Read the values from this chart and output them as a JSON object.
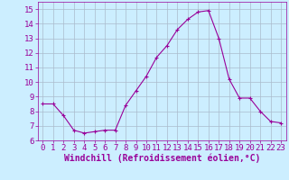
{
  "x": [
    0,
    1,
    2,
    3,
    4,
    5,
    6,
    7,
    8,
    9,
    10,
    11,
    12,
    13,
    14,
    15,
    16,
    17,
    18,
    19,
    20,
    21,
    22,
    23
  ],
  "y": [
    8.5,
    8.5,
    7.7,
    6.7,
    6.5,
    6.6,
    6.7,
    6.7,
    8.4,
    9.4,
    10.4,
    11.7,
    12.5,
    13.6,
    14.3,
    14.8,
    14.9,
    13.0,
    10.2,
    8.9,
    8.9,
    8.0,
    7.3,
    7.2
  ],
  "line_color": "#990099",
  "marker": "+",
  "marker_size": 3,
  "bg_color": "#cceeff",
  "grid_color": "#aabbcc",
  "xlabel": "Windchill (Refroidissement éolien,°C)",
  "xlabel_color": "#990099",
  "tick_color": "#990099",
  "xlim": [
    -0.5,
    23.5
  ],
  "ylim": [
    6,
    15.5
  ],
  "yticks": [
    6,
    7,
    8,
    9,
    10,
    11,
    12,
    13,
    14,
    15
  ],
  "xticks": [
    0,
    1,
    2,
    3,
    4,
    5,
    6,
    7,
    8,
    9,
    10,
    11,
    12,
    13,
    14,
    15,
    16,
    17,
    18,
    19,
    20,
    21,
    22,
    23
  ],
  "xlabel_fontsize": 7,
  "tick_fontsize": 6.5
}
